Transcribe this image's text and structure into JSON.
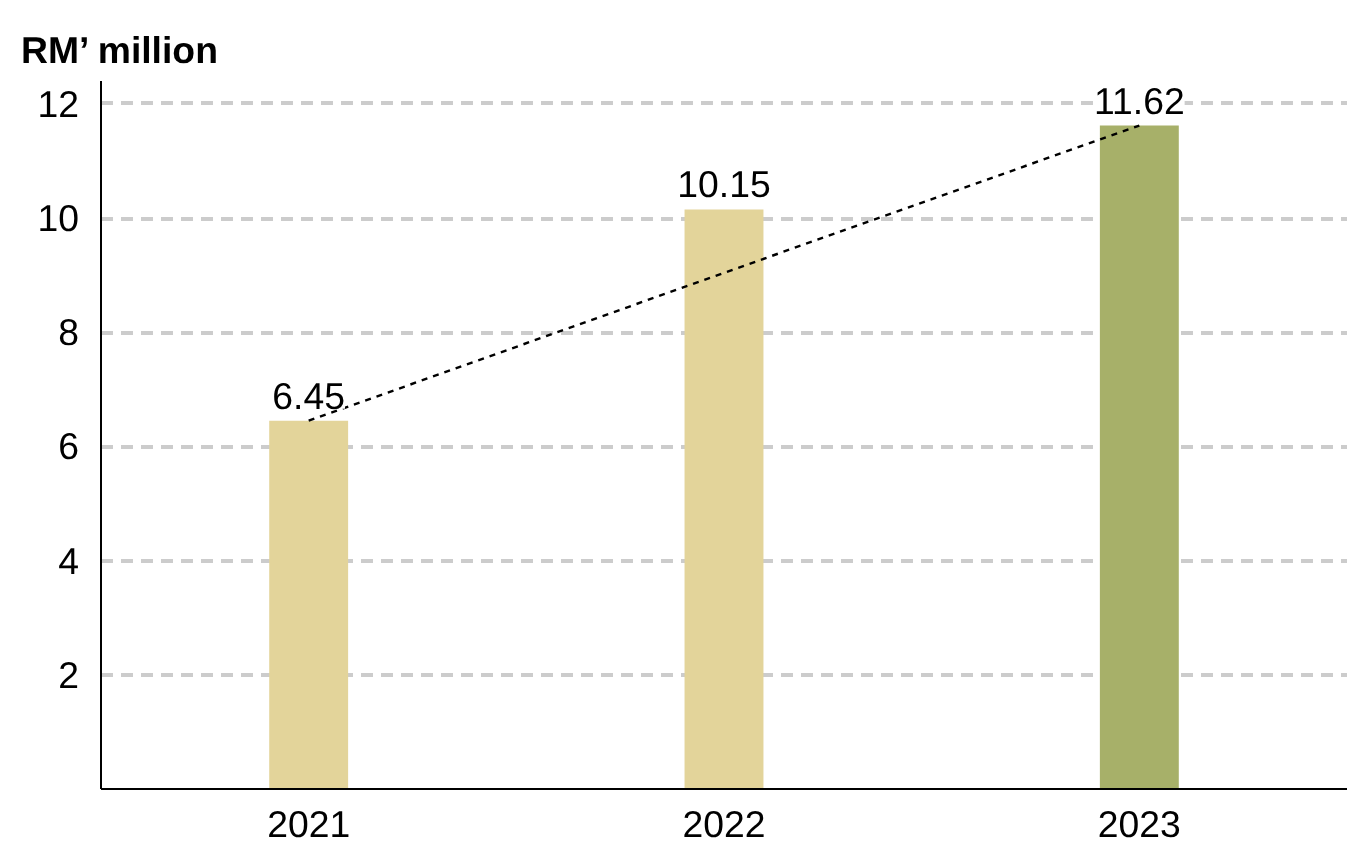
{
  "chart_data": {
    "type": "bar",
    "ylabel": "RM’ million",
    "categories": [
      "2021",
      "2022",
      "2023"
    ],
    "series": [
      {
        "values": [
          6.45,
          10.15,
          11.62
        ],
        "colors": [
          "#e3d49a",
          "#e3d49a",
          "#a7b069"
        ],
        "value_labels": [
          "6.45",
          "10.15",
          "11.62"
        ]
      },
      {
        "type": "line",
        "color": "#000000",
        "line_style": "dashed",
        "values": [
          6.45,
          9.04,
          11.62
        ]
      }
    ],
    "ylim": [
      0,
      12.4
    ],
    "yticks": [
      2,
      4,
      6,
      8,
      10,
      12
    ],
    "grid": "y"
  }
}
